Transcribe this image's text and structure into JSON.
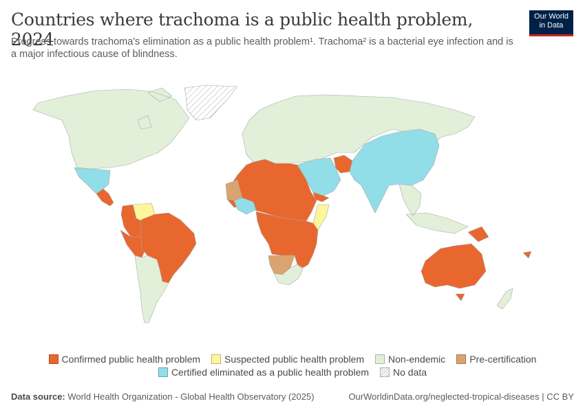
{
  "header": {
    "title": "Countries where trachoma is a public health problem, 2024",
    "subtitle": "Progress towards trachoma's elimination as a public health problem¹. Trachoma² is a bacterial eye infection and is a major infectious cause of blindness."
  },
  "logo": {
    "line1": "Our World",
    "line2": "in Data"
  },
  "colors": {
    "confirmed": "#e8672f",
    "suspected": "#fff59a",
    "non_endemic": "#e2f0d9",
    "pre_certification": "#d9a470",
    "certified": "#91dde8",
    "no_data": "#ffffff",
    "ocean": "#ffffff",
    "border": "#a8a8a8"
  },
  "legend": {
    "row1": [
      {
        "key": "confirmed",
        "label": "Confirmed public health problem"
      },
      {
        "key": "suspected",
        "label": "Suspected public health problem"
      },
      {
        "key": "non_endemic",
        "label": "Non-endemic"
      },
      {
        "key": "pre_certification",
        "label": "Pre-certification"
      }
    ],
    "row2": [
      {
        "key": "certified",
        "label": "Certified eliminated as a public health problem"
      },
      {
        "key": "no_data",
        "label": "No data"
      }
    ]
  },
  "footer": {
    "source_label": "Data source:",
    "source_text": "World Health Organization - Global Health Observatory (2025)",
    "right_text": "OurWorldinData.org/neglected-tropical-diseases | CC BY"
  },
  "map": {
    "year": "2024",
    "regions": [
      {
        "name": "greenland",
        "status": "no_data"
      },
      {
        "name": "north-america",
        "status": "non_endemic"
      },
      {
        "name": "mexico",
        "status": "certified"
      },
      {
        "name": "central-america",
        "status": "confirmed"
      },
      {
        "name": "venezuela",
        "status": "suspected"
      },
      {
        "name": "colombia",
        "status": "confirmed"
      },
      {
        "name": "peru",
        "status": "confirmed"
      },
      {
        "name": "brazil",
        "status": "confirmed"
      },
      {
        "name": "south-america-south",
        "status": "non_endemic"
      },
      {
        "name": "europe-russia",
        "status": "non_endemic"
      },
      {
        "name": "north-africa-sahel",
        "status": "confirmed"
      },
      {
        "name": "mauritania",
        "status": "pre_certification"
      },
      {
        "name": "west-africa-certified",
        "status": "certified"
      },
      {
        "name": "central-east-africa",
        "status": "confirmed"
      },
      {
        "name": "somalia",
        "status": "suspected"
      },
      {
        "name": "namibia-botswana",
        "status": "pre_certification"
      },
      {
        "name": "south-africa",
        "status": "non_endemic"
      },
      {
        "name": "middle-east",
        "status": "certified"
      },
      {
        "name": "afghanistan",
        "status": "confirmed"
      },
      {
        "name": "yemen",
        "status": "confirmed"
      },
      {
        "name": "india-china",
        "status": "certified"
      },
      {
        "name": "southeast-asia",
        "status": "non_endemic"
      },
      {
        "name": "australia",
        "status": "confirmed"
      },
      {
        "name": "png-pacific",
        "status": "confirmed"
      },
      {
        "name": "new-zealand",
        "status": "non_endemic"
      }
    ]
  }
}
